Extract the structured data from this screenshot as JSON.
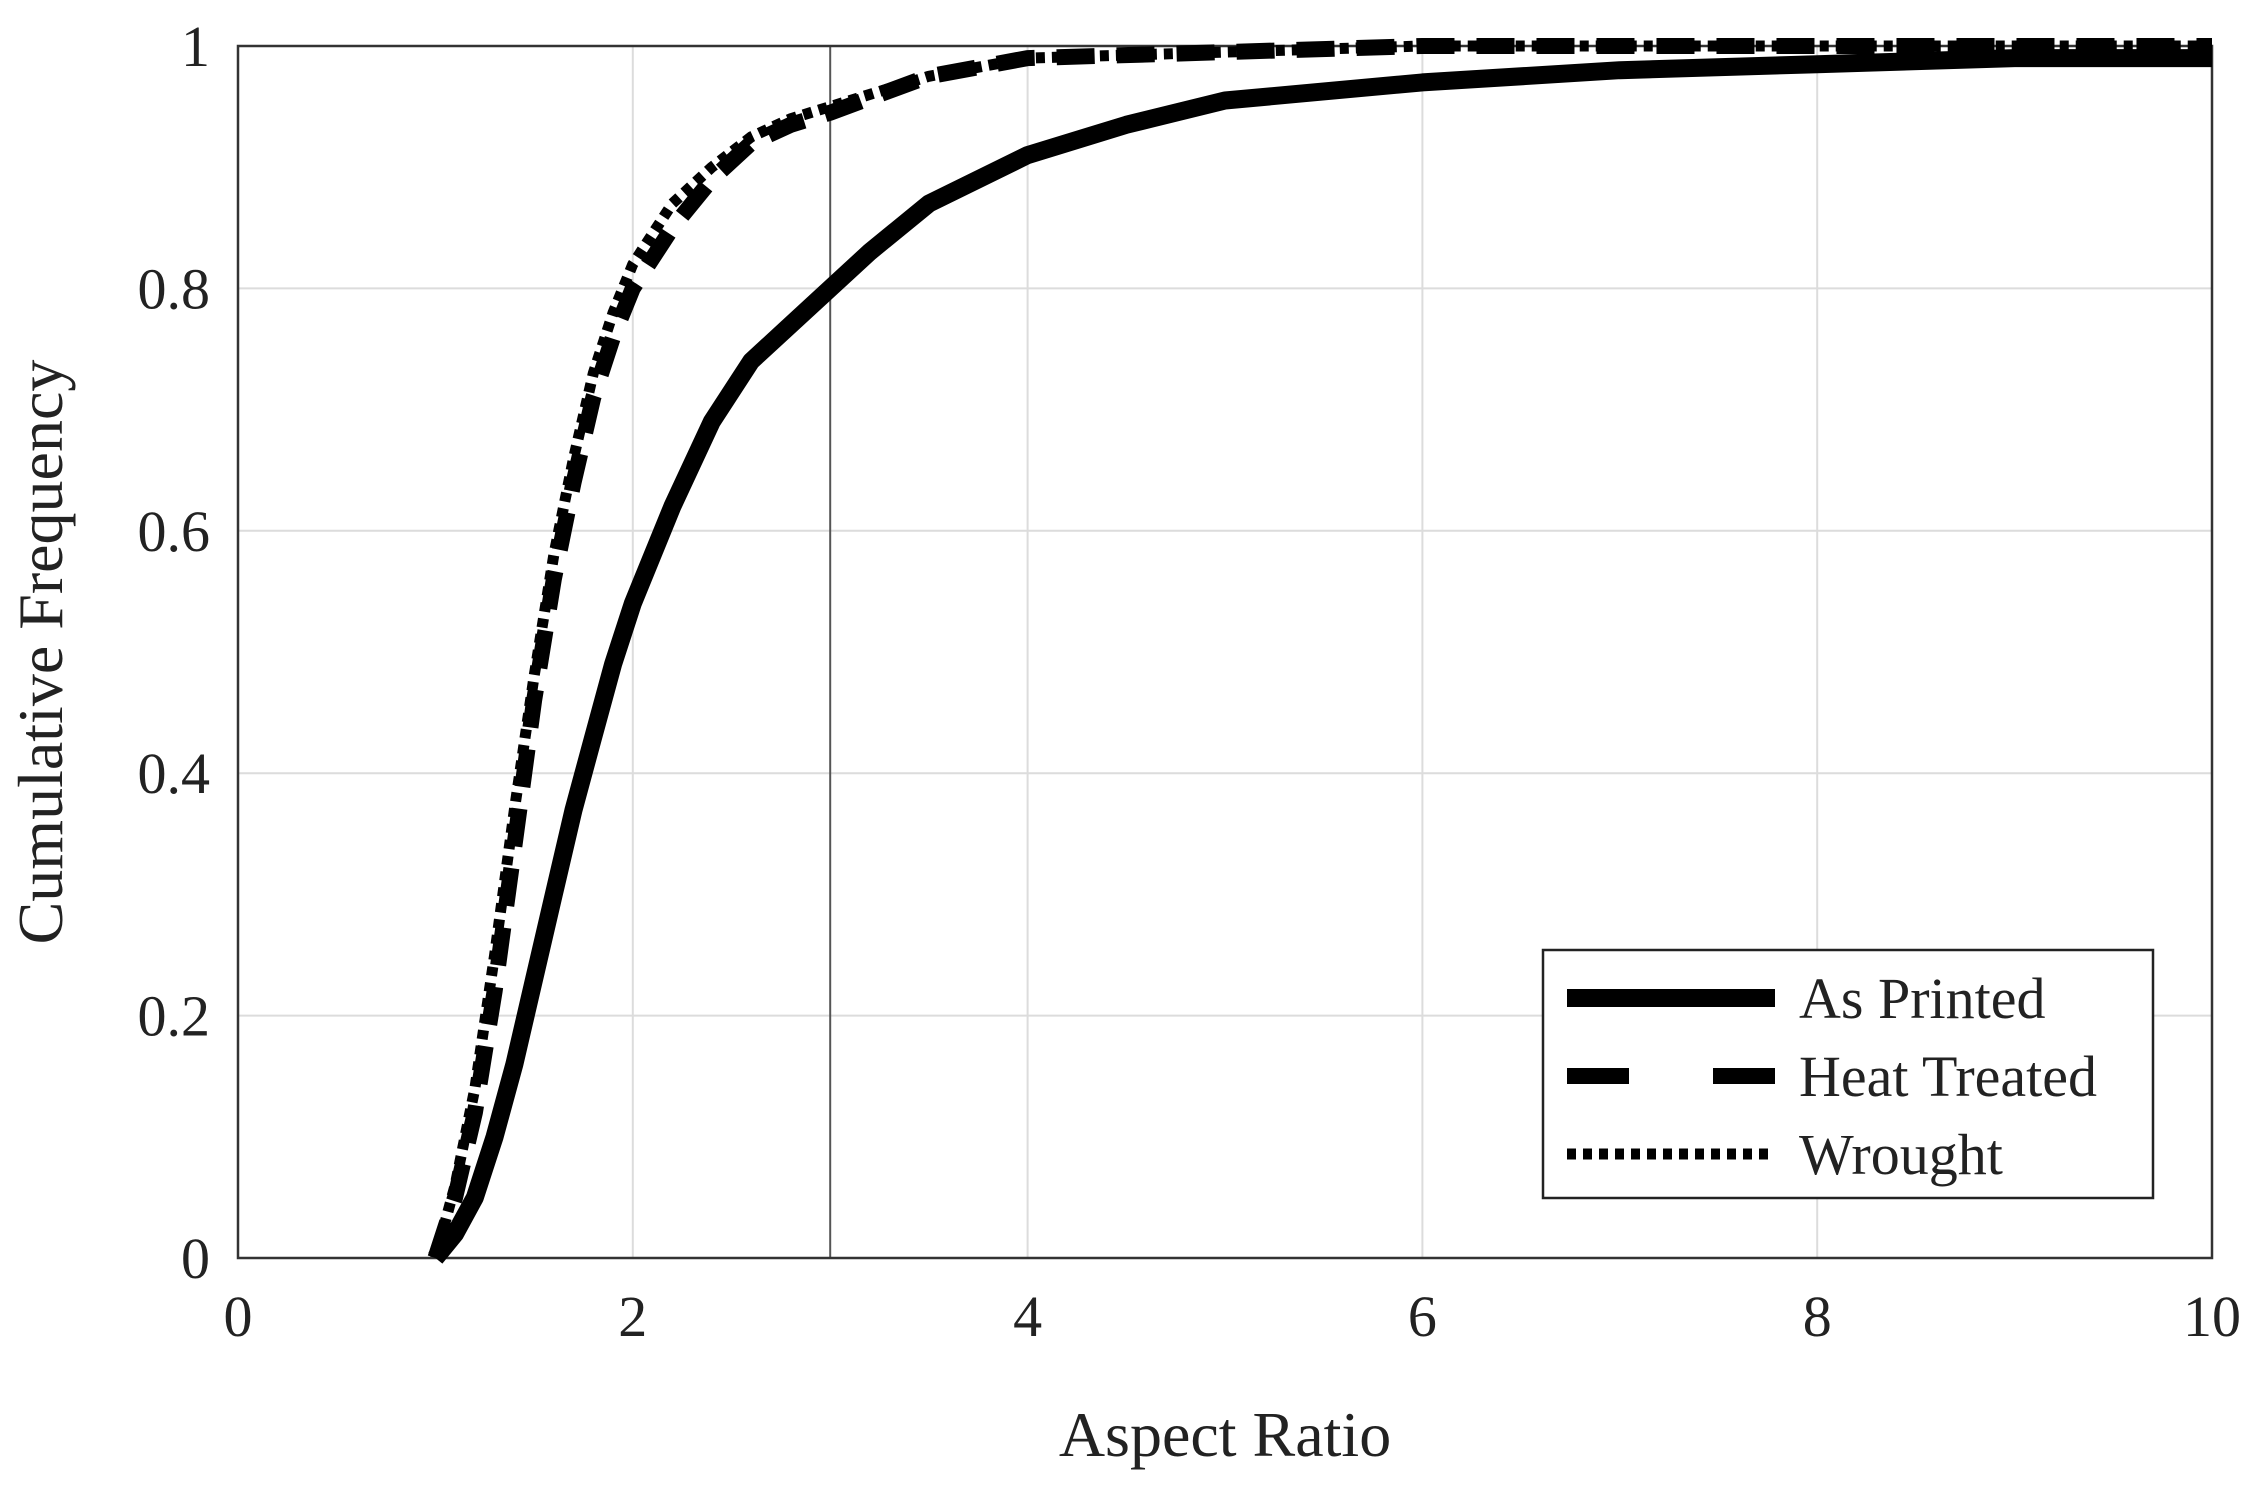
{
  "chart_data": {
    "type": "line",
    "title": "",
    "xlabel": "Aspect Ratio",
    "ylabel": "Cumulative Frequency",
    "xlim": [
      0,
      10
    ],
    "ylim": [
      0,
      1
    ],
    "xticks": [
      0,
      2,
      4,
      6,
      8,
      10
    ],
    "xtick_labels": [
      "0",
      "2",
      "4",
      "6",
      "8",
      "10"
    ],
    "yticks": [
      0,
      0.2,
      0.4,
      0.6,
      0.8,
      1
    ],
    "ytick_labels": [
      "0",
      "0.2",
      "0.4",
      "0.6",
      "0.8",
      "1"
    ],
    "grid": true,
    "reference_line_x": 3,
    "legend_position": "bottom-right",
    "series": [
      {
        "name": "As Printed",
        "style": "solid",
        "x": [
          1.0,
          1.1,
          1.2,
          1.3,
          1.4,
          1.5,
          1.6,
          1.7,
          1.8,
          1.9,
          2.0,
          2.2,
          2.4,
          2.6,
          2.8,
          3.0,
          3.2,
          3.5,
          4.0,
          4.5,
          5.0,
          6.0,
          7.0,
          8.0,
          9.0,
          10.0
        ],
        "y": [
          0.0,
          0.02,
          0.05,
          0.1,
          0.16,
          0.23,
          0.3,
          0.37,
          0.43,
          0.49,
          0.54,
          0.62,
          0.69,
          0.74,
          0.77,
          0.8,
          0.83,
          0.87,
          0.91,
          0.935,
          0.955,
          0.97,
          0.98,
          0.985,
          0.99,
          0.99
        ]
      },
      {
        "name": "Heat Treated",
        "style": "dashed",
        "x": [
          1.0,
          1.1,
          1.2,
          1.3,
          1.4,
          1.5,
          1.6,
          1.7,
          1.8,
          1.9,
          2.0,
          2.2,
          2.4,
          2.6,
          2.8,
          3.0,
          3.5,
          4.0,
          5.0,
          6.0,
          7.0,
          8.0,
          10.0
        ],
        "y": [
          0.0,
          0.05,
          0.12,
          0.22,
          0.34,
          0.46,
          0.56,
          0.64,
          0.71,
          0.76,
          0.8,
          0.85,
          0.89,
          0.92,
          0.935,
          0.945,
          0.975,
          0.99,
          0.995,
          1.0,
          1.0,
          1.0,
          1.0
        ]
      },
      {
        "name": "Wrought",
        "style": "dotted",
        "x": [
          1.0,
          1.1,
          1.2,
          1.3,
          1.4,
          1.5,
          1.6,
          1.7,
          1.8,
          1.9,
          2.0,
          2.2,
          2.4,
          2.6,
          2.8,
          3.0,
          3.5,
          4.0,
          5.0,
          6.0,
          7.0,
          8.0,
          10.0
        ],
        "y": [
          0.0,
          0.06,
          0.14,
          0.25,
          0.37,
          0.48,
          0.58,
          0.66,
          0.73,
          0.78,
          0.82,
          0.87,
          0.9,
          0.925,
          0.94,
          0.95,
          0.975,
          0.99,
          0.995,
          1.0,
          1.0,
          1.0,
          1.0
        ]
      }
    ]
  }
}
